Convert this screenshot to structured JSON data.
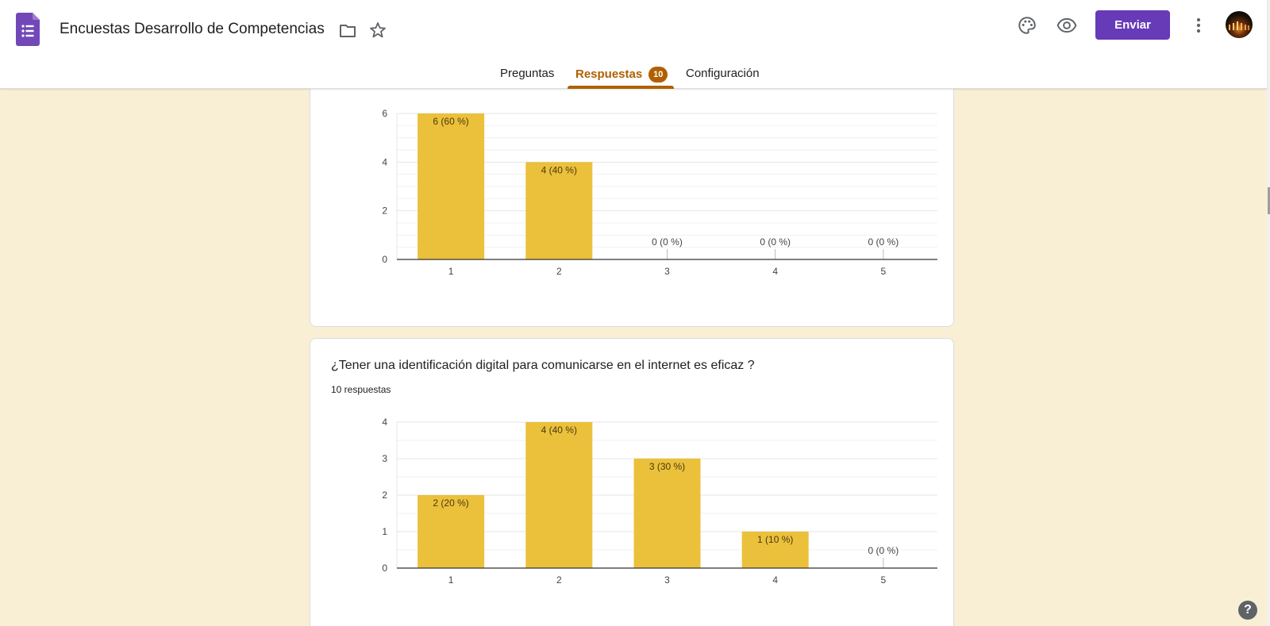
{
  "header": {
    "title": "Encuestas Desarrollo de Competencias",
    "send_label": "Enviar",
    "icons": [
      "forms-logo-icon",
      "folder-icon",
      "star-icon",
      "palette-icon",
      "eye-icon",
      "more-vert-icon",
      "avatar"
    ]
  },
  "tabs": {
    "items": [
      {
        "label": "Preguntas"
      },
      {
        "label": "Respuestas",
        "badge": "10",
        "active": true
      },
      {
        "label": "Configuración"
      }
    ]
  },
  "accent_color": "#b06000",
  "brand_color": "#673ab7",
  "bar_color": "#ebc03b",
  "background_color": "#f9efd4",
  "questions": [
    {
      "title": "",
      "count": ""
    },
    {
      "title": "¿Tener una identificación digital para comunicarse en el internet es eficaz ?",
      "count": "10 respuestas"
    }
  ],
  "chart_data": [
    {
      "type": "bar",
      "categories": [
        "1",
        "2",
        "3",
        "4",
        "5"
      ],
      "values": [
        6,
        4,
        0,
        0,
        0
      ],
      "labels": [
        "6 (60 %)",
        "4 (40 %)",
        "0 (0 %)",
        "0 (0 %)",
        "0 (0 %)"
      ],
      "yticks": [
        0,
        2,
        4,
        6
      ],
      "ylim": [
        0,
        6
      ],
      "grid": true
    },
    {
      "type": "bar",
      "categories": [
        "1",
        "2",
        "3",
        "4",
        "5"
      ],
      "values": [
        2,
        4,
        3,
        1,
        0
      ],
      "labels": [
        "2 (20 %)",
        "4 (40 %)",
        "3 (30 %)",
        "1 (10 %)",
        "0 (0 %)"
      ],
      "yticks": [
        0,
        1,
        2,
        3,
        4
      ],
      "ylim": [
        0,
        4
      ],
      "grid": true
    }
  ],
  "help": {
    "label": "?"
  }
}
